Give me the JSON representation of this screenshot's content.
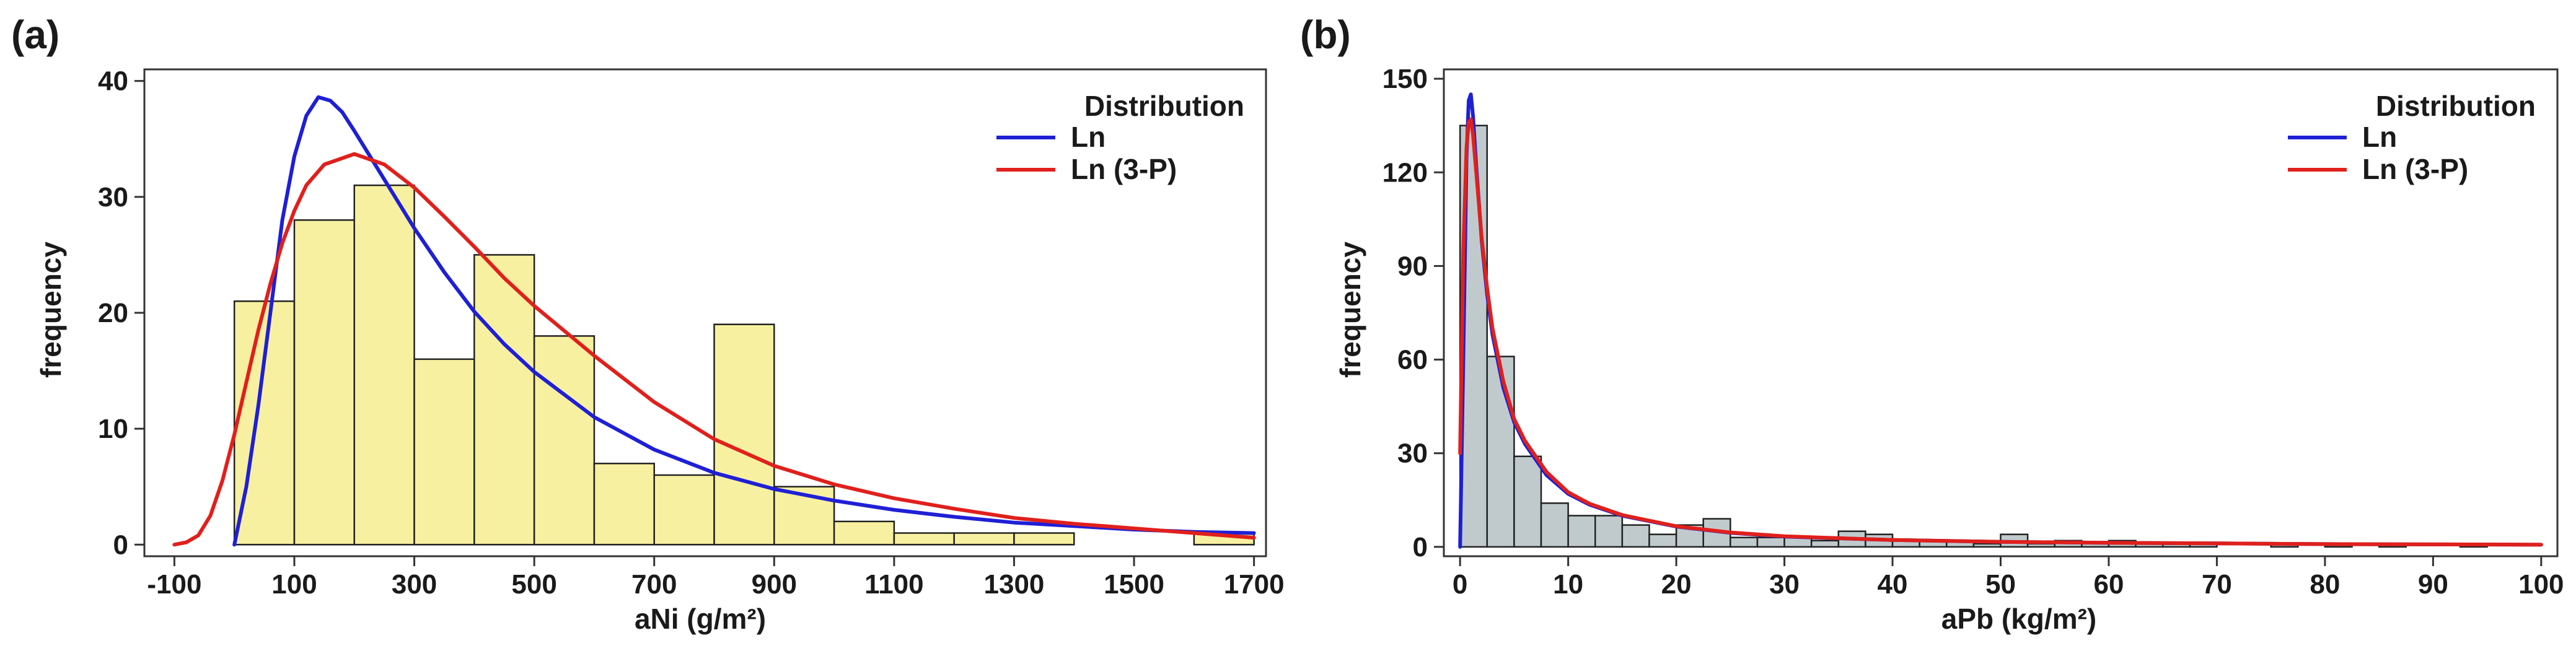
{
  "colors": {
    "ln": "#1f1fd6",
    "ln3p": "#e0201c",
    "bar_a": "#f7f0a0",
    "bar_b": "#c0cacd",
    "edge": "#222222"
  },
  "chart_data": [
    {
      "panel": "(a)",
      "type": "bar",
      "title": "",
      "xlabel": "aNi (g/m²)",
      "ylabel": "frequency",
      "xlim": [
        -150,
        1720
      ],
      "ylim": [
        -1,
        41
      ],
      "xticks": [
        -100,
        100,
        300,
        500,
        700,
        900,
        1100,
        1300,
        1500,
        1700
      ],
      "xtick_labels": [
        "-100",
        "100",
        "300",
        "500",
        "700",
        "900",
        "1100",
        "1300",
        "1500",
        "1700"
      ],
      "yticks": [
        0,
        10,
        20,
        30,
        40
      ],
      "ytick_labels": [
        "0",
        "10",
        "20",
        "30",
        "40"
      ],
      "bin_edges": [
        0,
        100,
        200,
        300,
        400,
        500,
        600,
        700,
        800,
        900,
        1000,
        1100,
        1200,
        1300,
        1400,
        1500,
        1600,
        1700
      ],
      "counts": [
        21,
        28,
        31,
        16,
        25,
        18,
        7,
        6,
        19,
        5,
        2,
        1,
        1,
        1,
        0,
        0,
        1
      ],
      "legend": {
        "title": "Distribution",
        "entries": [
          "Ln",
          "Ln (3-P)"
        ],
        "position": "top-right"
      },
      "series": [
        {
          "name": "Ln",
          "x": [
            0,
            20,
            40,
            60,
            80,
            100,
            120,
            140,
            160,
            180,
            200,
            250,
            300,
            350,
            400,
            450,
            500,
            600,
            700,
            800,
            900,
            1000,
            1100,
            1200,
            1300,
            1400,
            1500,
            1600,
            1700
          ],
          "y": [
            0,
            5,
            12,
            20,
            28,
            33.5,
            37,
            38.6,
            38.3,
            37.3,
            35.7,
            31.5,
            27.3,
            23.5,
            20.1,
            17.3,
            14.9,
            11.0,
            8.2,
            6.2,
            4.8,
            3.8,
            3.0,
            2.4,
            1.9,
            1.6,
            1.3,
            1.1,
            1.0
          ]
        },
        {
          "name": "Ln (3-P)",
          "x": [
            -100,
            -80,
            -60,
            -40,
            -20,
            0,
            20,
            40,
            60,
            80,
            100,
            120,
            150,
            200,
            250,
            300,
            350,
            400,
            450,
            500,
            600,
            700,
            800,
            900,
            1000,
            1100,
            1200,
            1300,
            1400,
            1500,
            1600,
            1700
          ],
          "y": [
            0,
            0.2,
            0.8,
            2.5,
            5.5,
            9.5,
            14,
            18.5,
            22.5,
            26,
            28.8,
            31,
            32.8,
            33.7,
            32.8,
            30.8,
            28.3,
            25.7,
            23.0,
            20.6,
            16.3,
            12.3,
            9.1,
            6.8,
            5.2,
            4.0,
            3.1,
            2.3,
            1.8,
            1.4,
            1.0,
            0.6
          ]
        }
      ]
    },
    {
      "panel": "(b)",
      "type": "bar",
      "title": "",
      "xlabel": "aPb (kg/m²)",
      "ylabel": "frequency",
      "xlim": [
        -1.5,
        101.5
      ],
      "ylim": [
        -3,
        153
      ],
      "xticks": [
        0,
        10,
        20,
        30,
        40,
        50,
        60,
        70,
        80,
        90,
        100
      ],
      "xtick_labels": [
        "0",
        "10",
        "20",
        "30",
        "40",
        "50",
        "60",
        "70",
        "80",
        "90",
        "100"
      ],
      "yticks": [
        0,
        30,
        60,
        90,
        120,
        150
      ],
      "ytick_labels": [
        "0",
        "30",
        "60",
        "90",
        "120",
        "150"
      ],
      "bin_edges": [
        0,
        2.5,
        5,
        7.5,
        10,
        12.5,
        15,
        17.5,
        20,
        22.5,
        25,
        27.5,
        30,
        32.5,
        35,
        37.5,
        40,
        42.5,
        45,
        47.5,
        50,
        52.5,
        55,
        57.5,
        60,
        62.5,
        65,
        67.5,
        70,
        72.5,
        75,
        77.5,
        80,
        82.5,
        85,
        87.5,
        90,
        92.5,
        95,
        97.5,
        100
      ],
      "counts": [
        135,
        61,
        29,
        14,
        10,
        10,
        7,
        4,
        7,
        9,
        3,
        3,
        3,
        2,
        5,
        4,
        2,
        2,
        2,
        1,
        4,
        1,
        2,
        1,
        2,
        1,
        1,
        1,
        0,
        0,
        1,
        0,
        1,
        0,
        1,
        0,
        0,
        1,
        0,
        0
      ],
      "legend": {
        "title": "Distribution",
        "entries": [
          "Ln",
          "Ln (3-P)"
        ],
        "position": "top-right"
      },
      "series": [
        {
          "name": "Ln",
          "x": [
            0,
            0.3,
            0.6,
            0.8,
            1.0,
            1.2,
            1.5,
            2,
            2.5,
            3,
            4,
            5,
            6,
            8,
            10,
            12,
            15,
            20,
            25,
            30,
            40,
            50,
            60,
            70,
            80,
            90,
            100
          ],
          "y": [
            0,
            60,
            125,
            143,
            145,
            138,
            122,
            98,
            81,
            68,
            51,
            40,
            33,
            23,
            17,
            13.5,
            10,
            6.5,
            4.5,
            3.3,
            2.2,
            1.6,
            1.3,
            1.1,
            0.9,
            0.8,
            0.7
          ]
        },
        {
          "name": "Ln (3-P)",
          "x": [
            0,
            0.3,
            0.6,
            0.8,
            1.0,
            1.2,
            1.5,
            2,
            2.5,
            3,
            4,
            5,
            6,
            8,
            10,
            12,
            15,
            20,
            25,
            30,
            40,
            50,
            60,
            70,
            80,
            90,
            100
          ],
          "y": [
            30,
            95,
            128,
            136,
            137,
            132,
            120,
            99,
            83,
            70,
            53,
            41,
            34,
            24,
            17.5,
            13.8,
            10.2,
            6.6,
            4.6,
            3.4,
            2.2,
            1.6,
            1.3,
            1.1,
            0.9,
            0.8,
            0.7
          ]
        }
      ]
    }
  ]
}
